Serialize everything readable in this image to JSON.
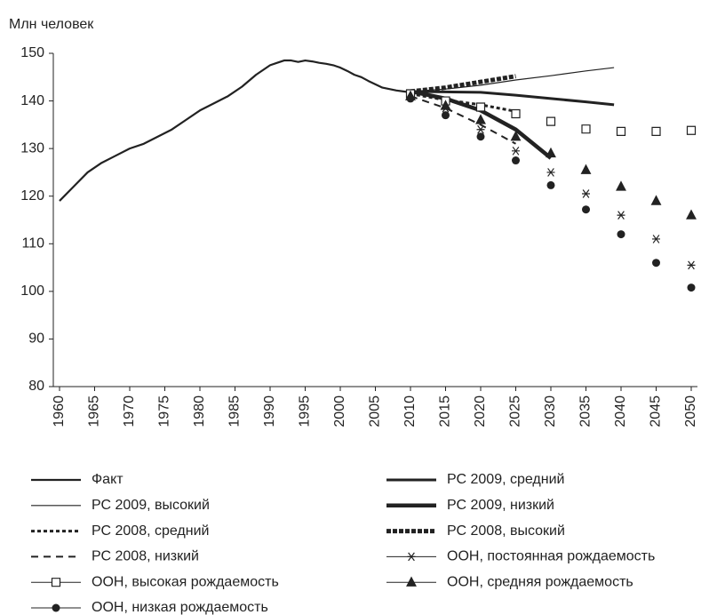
{
  "chart_data": {
    "type": "line",
    "y_label": "Млн человек",
    "xlim": [
      1960,
      2050
    ],
    "ylim": [
      80,
      150
    ],
    "xticks": [
      1960,
      1965,
      1970,
      1975,
      1980,
      1985,
      1990,
      1995,
      2000,
      2005,
      2010,
      2015,
      2020,
      2025,
      2030,
      2035,
      2040,
      2045,
      2050
    ],
    "yticks": [
      80,
      90,
      100,
      110,
      120,
      130,
      140,
      150
    ],
    "grid": false,
    "series": [
      {
        "name": "Факт",
        "color": "#222222",
        "line_width": 2.2,
        "dash": "none",
        "marker": "none",
        "line": true,
        "x": [
          1960,
          1962,
          1964,
          1966,
          1968,
          1970,
          1972,
          1974,
          1976,
          1978,
          1980,
          1982,
          1984,
          1986,
          1988,
          1989,
          1990,
          1991,
          1992,
          1993,
          1994,
          1995,
          1996,
          1997,
          1998,
          1999,
          2000,
          2001,
          2002,
          2003,
          2004,
          2005,
          2006,
          2007,
          2008,
          2009,
          2010
        ],
        "values": [
          119,
          122,
          125,
          127,
          128.5,
          130,
          131,
          132.5,
          134,
          136,
          138,
          139.5,
          141,
          143,
          145.5,
          146.5,
          147.5,
          148,
          148.5,
          148.5,
          148.2,
          148.5,
          148.3,
          148,
          147.8,
          147.5,
          147,
          146.3,
          145.5,
          145,
          144.2,
          143.5,
          142.8,
          142.5,
          142.2,
          142,
          141.8
        ]
      },
      {
        "name": "РС 2009, средний",
        "color": "#222222",
        "line_width": 3,
        "dash": "none",
        "marker": "none",
        "line": true,
        "x": [
          2010,
          2015,
          2020,
          2025,
          2030,
          2035,
          2039
        ],
        "values": [
          142,
          141.9,
          141.8,
          141.2,
          140.5,
          139.8,
          139.2
        ]
      },
      {
        "name": "РС 2009, высокий",
        "color": "#222222",
        "line_width": 1.2,
        "dash": "none",
        "marker": "none",
        "line": true,
        "x": [
          2010,
          2015,
          2020,
          2025,
          2030,
          2035,
          2039
        ],
        "values": [
          142,
          142.5,
          143.3,
          144.4,
          145.3,
          146.3,
          147
        ]
      },
      {
        "name": "РС 2009, низкий",
        "color": "#222222",
        "line_width": 4.5,
        "dash": "none",
        "marker": "none",
        "line": true,
        "x": [
          2010,
          2015,
          2020,
          2025,
          2030
        ],
        "values": [
          142,
          140.5,
          138,
          134,
          128
        ]
      },
      {
        "name": "РС 2008, средний",
        "color": "#222222",
        "line_width": 3,
        "dash": "4,3",
        "marker": "none",
        "line": true,
        "x": [
          2010,
          2015,
          2020,
          2025
        ],
        "values": [
          141.5,
          140.2,
          139.2,
          137.8
        ]
      },
      {
        "name": "РС 2008, высокий",
        "color": "#222222",
        "line_width": 5,
        "dash": "5,2",
        "marker": "none",
        "line": true,
        "x": [
          2010,
          2015,
          2020,
          2025
        ],
        "values": [
          142,
          142.8,
          144,
          145.2
        ]
      },
      {
        "name": "РС 2008, низкий",
        "color": "#222222",
        "line_width": 2,
        "dash": "8,6",
        "marker": "none",
        "line": true,
        "x": [
          2010,
          2015,
          2020,
          2025
        ],
        "values": [
          141,
          138.5,
          135,
          131
        ]
      },
      {
        "name": "ООН, постоянная рождаемость",
        "color": "#222222",
        "line_width": 1,
        "dash": "none",
        "marker": "asterisk",
        "line": false,
        "x": [
          2010,
          2015,
          2020,
          2025,
          2030,
          2035,
          2040,
          2045,
          2050
        ],
        "values": [
          141,
          138.5,
          134,
          129.5,
          125,
          120.5,
          116,
          111,
          105.5
        ]
      },
      {
        "name": "ООН, высокая рождаемость",
        "color": "#222222",
        "line_width": 1,
        "dash": "none",
        "marker": "square",
        "line": false,
        "x": [
          2010,
          2015,
          2020,
          2025,
          2030,
          2035,
          2040,
          2045,
          2050
        ],
        "values": [
          141.5,
          140,
          138.7,
          137.3,
          135.7,
          134.1,
          133.6,
          133.6,
          133.8
        ]
      },
      {
        "name": "ООН, средняя рождаемость",
        "color": "#222222",
        "line_width": 1,
        "dash": "none",
        "marker": "triangle",
        "line": false,
        "x": [
          2010,
          2015,
          2020,
          2025,
          2030,
          2035,
          2040,
          2045,
          2050
        ],
        "values": [
          141,
          139,
          136,
          132.5,
          129,
          125.5,
          122,
          119,
          116
        ]
      },
      {
        "name": "ООН, низкая рождаемость",
        "color": "#222222",
        "line_width": 1,
        "dash": "none",
        "marker": "circle",
        "line": false,
        "x": [
          2010,
          2015,
          2020,
          2025,
          2030,
          2035,
          2040,
          2045,
          2050
        ],
        "values": [
          140.5,
          137,
          132.5,
          127.5,
          122.3,
          117.2,
          112,
          106,
          100.8
        ]
      }
    ]
  }
}
